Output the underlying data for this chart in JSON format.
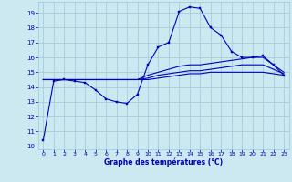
{
  "xlabel": "Graphe des températures (°C)",
  "bg_color": "#cce8f0",
  "grid_color": "#9ec8d8",
  "line_color": "#0000bb",
  "xlim_min": -0.5,
  "xlim_max": 23.5,
  "ylim_min": 9.8,
  "ylim_max": 19.75,
  "yticks": [
    10,
    11,
    12,
    13,
    14,
    15,
    16,
    17,
    18,
    19
  ],
  "xticks": [
    0,
    1,
    2,
    3,
    4,
    5,
    6,
    7,
    8,
    9,
    10,
    11,
    12,
    13,
    14,
    15,
    16,
    17,
    18,
    19,
    20,
    21,
    22,
    23
  ],
  "line1_x": [
    0,
    1,
    2,
    3,
    4,
    5,
    6,
    7,
    8,
    9,
    10,
    11,
    12,
    13,
    14,
    15,
    16,
    17,
    18,
    19,
    20,
    21,
    22,
    23
  ],
  "line1_y": [
    10.4,
    14.4,
    14.5,
    14.4,
    14.3,
    13.8,
    13.2,
    13.0,
    12.9,
    13.5,
    15.5,
    16.7,
    17.0,
    19.1,
    19.4,
    19.3,
    18.0,
    17.5,
    16.4,
    16.0,
    16.0,
    16.1,
    15.5,
    14.8
  ],
  "line2_x": [
    0,
    1,
    2,
    3,
    4,
    5,
    6,
    7,
    8,
    9,
    10,
    11,
    12,
    13,
    14,
    15,
    16,
    17,
    18,
    19,
    20,
    21,
    22,
    23
  ],
  "line2_y": [
    14.5,
    14.5,
    14.5,
    14.5,
    14.5,
    14.5,
    14.5,
    14.5,
    14.5,
    14.5,
    14.8,
    15.0,
    15.2,
    15.4,
    15.5,
    15.5,
    15.6,
    15.7,
    15.8,
    15.9,
    16.0,
    16.0,
    15.5,
    15.0
  ],
  "line3_x": [
    0,
    1,
    2,
    3,
    4,
    5,
    6,
    7,
    8,
    9,
    10,
    11,
    12,
    13,
    14,
    15,
    16,
    17,
    18,
    19,
    20,
    21,
    22,
    23
  ],
  "line3_y": [
    14.5,
    14.5,
    14.5,
    14.5,
    14.5,
    14.5,
    14.5,
    14.5,
    14.5,
    14.5,
    14.6,
    14.8,
    14.9,
    15.0,
    15.1,
    15.1,
    15.2,
    15.3,
    15.4,
    15.5,
    15.5,
    15.5,
    15.2,
    14.9
  ],
  "line4_x": [
    0,
    1,
    2,
    3,
    4,
    5,
    6,
    7,
    8,
    9,
    10,
    11,
    12,
    13,
    14,
    15,
    16,
    17,
    18,
    19,
    20,
    21,
    22,
    23
  ],
  "line4_y": [
    14.5,
    14.5,
    14.5,
    14.5,
    14.5,
    14.5,
    14.5,
    14.5,
    14.5,
    14.5,
    14.5,
    14.6,
    14.7,
    14.8,
    14.9,
    14.9,
    15.0,
    15.0,
    15.0,
    15.0,
    15.0,
    15.0,
    14.9,
    14.8
  ]
}
